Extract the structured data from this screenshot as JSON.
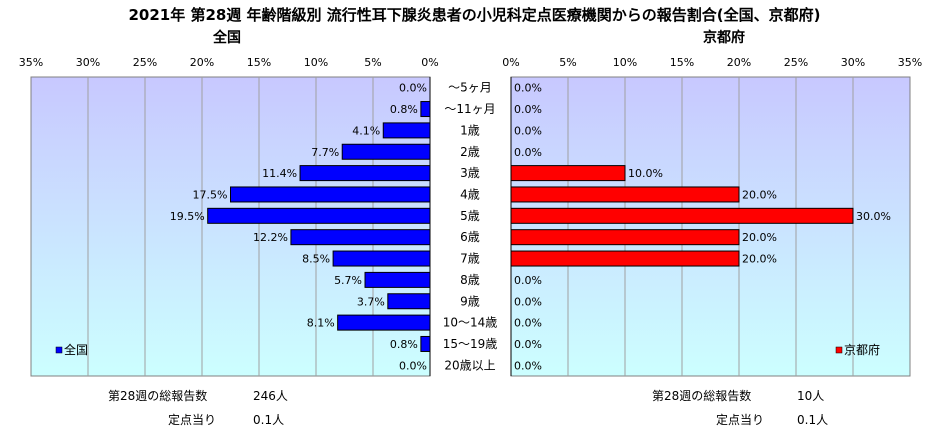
{
  "chart_data": {
    "type": "bar",
    "title": "2021年 第28週 年齢階級別 流行性耳下腺炎患者の小児科定点医療機関からの報告割合(全国、京都府)",
    "categories": [
      "～5ヶ月",
      "～11ヶ月",
      "1歳",
      "2歳",
      "3歳",
      "4歳",
      "5歳",
      "6歳",
      "7歳",
      "8歳",
      "9歳",
      "10～14歳",
      "15～19歳",
      "20歳以上"
    ],
    "panels": [
      {
        "title": "全国",
        "direction": "left",
        "series": [
          {
            "name": "全国",
            "color": "#0000ff",
            "values": [
              0.0,
              0.8,
              4.1,
              7.7,
              11.4,
              17.5,
              19.5,
              12.2,
              8.5,
              5.7,
              3.7,
              8.1,
              0.8,
              0.0
            ],
            "labels": [
              "0.0%",
              "0.8%",
              "4.1%",
              "7.7%",
              "11.4%",
              "17.5%",
              "19.5%",
              "12.2%",
              "8.5%",
              "5.7%",
              "3.7%",
              "8.1%",
              "0.8%",
              "0.0%"
            ]
          }
        ],
        "xlim": [
          0,
          35
        ],
        "ticks": [
          "35%",
          "30%",
          "25%",
          "20%",
          "15%",
          "10%",
          "5%",
          "0%"
        ],
        "legend": "lower-left"
      },
      {
        "title": "京都府",
        "direction": "right",
        "series": [
          {
            "name": "京都府",
            "color": "#ff0000",
            "values": [
              0.0,
              0.0,
              0.0,
              0.0,
              10.0,
              20.0,
              30.0,
              20.0,
              20.0,
              0.0,
              0.0,
              0.0,
              0.0,
              0.0
            ],
            "labels": [
              "0.0%",
              "0.0%",
              "0.0%",
              "0.0%",
              "10.0%",
              "20.0%",
              "30.0%",
              "20.0%",
              "20.0%",
              "0.0%",
              "0.0%",
              "0.0%",
              "0.0%",
              "0.0%"
            ]
          }
        ],
        "xlim": [
          0,
          35
        ],
        "ticks": [
          "0%",
          "5%",
          "10%",
          "15%",
          "20%",
          "25%",
          "30%",
          "35%"
        ],
        "legend": "lower-right"
      }
    ],
    "grid": true
  },
  "footer": {
    "national": {
      "total_label": "第28週の総報告数",
      "total_value": "246人",
      "per_label": "定点当り",
      "per_value": "0.1人"
    },
    "kyoto": {
      "total_label": "第28週の総報告数",
      "total_value": "10人",
      "per_label": "定点当り",
      "per_value": "0.1人"
    }
  },
  "colors": {
    "plot_top": "#c8c8ff",
    "plot_bottom": "#ccffff",
    "grid": "#a0a0a0"
  }
}
